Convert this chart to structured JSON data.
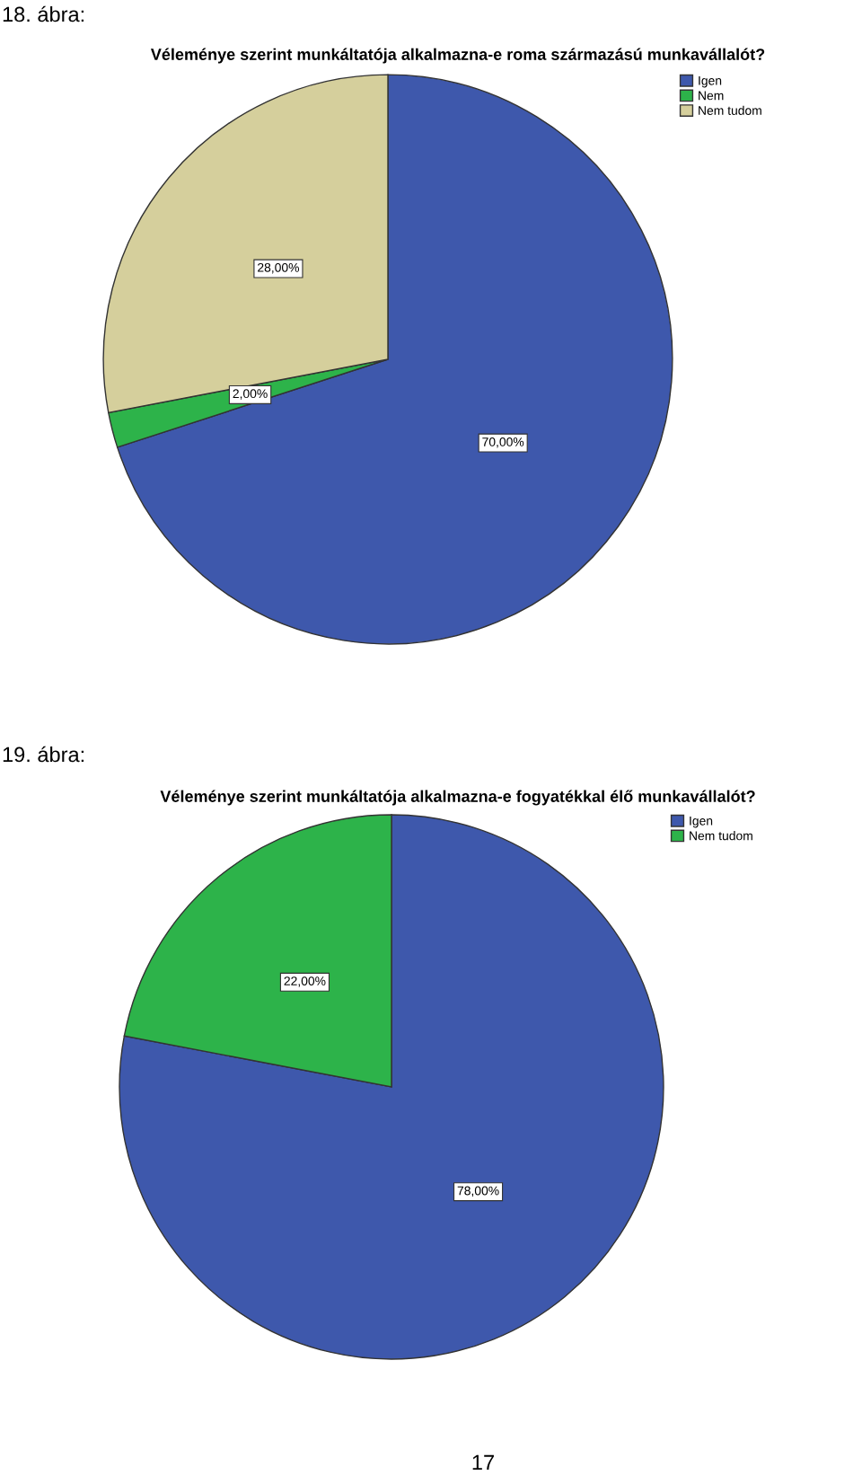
{
  "chart_data": [
    {
      "type": "pie",
      "title": "Véleménye szerint munkáltatója alkalmazna-e roma származású munkavállalót?",
      "categories": [
        "Igen",
        "Nem",
        "Nem tudom"
      ],
      "values": [
        70,
        2,
        28
      ],
      "colors": [
        "#3e58ac",
        "#2db34a",
        "#d5cf9c"
      ],
      "value_labels": [
        "70,00%",
        "2,00%",
        "28,00%"
      ],
      "legend": "top right",
      "annotations": [
        "18. ábra:"
      ]
    },
    {
      "type": "pie",
      "title": "Véleménye szerint munkáltatója alkalmazna-e fogyatékkal élő munkavállalót?",
      "categories": [
        "Igen",
        "Nem tudom"
      ],
      "values": [
        78,
        22
      ],
      "colors": [
        "#3e58ac",
        "#2db34a"
      ],
      "value_labels": [
        "78,00%",
        "22,00%"
      ],
      "legend": "top right",
      "annotations": [
        "19. ábra:",
        "17"
      ]
    }
  ]
}
